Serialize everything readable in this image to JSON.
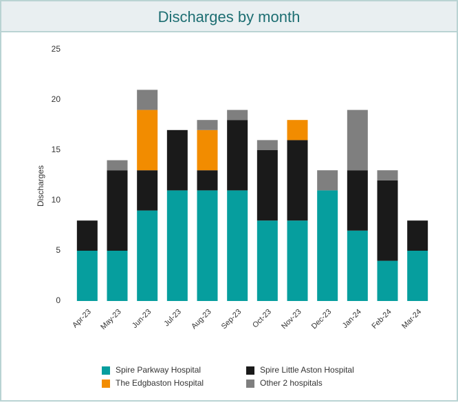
{
  "chart_data": {
    "type": "stacked_bar",
    "title": "Discharges by month",
    "y_label": "Discharges",
    "categories": [
      "Apr-23",
      "May-23",
      "Jun-23",
      "Jul-23",
      "Aug-23",
      "Sep-23",
      "Oct-23",
      "Nov-23",
      "Dec-23",
      "Jan-24",
      "Feb-24",
      "Mar-24"
    ],
    "series": [
      {
        "name": "Spire Parkway Hospital",
        "color": "#069e9e",
        "values": [
          5,
          5,
          9,
          11,
          11,
          11,
          8,
          8,
          11,
          7,
          4,
          5
        ]
      },
      {
        "name": "Spire Little Aston Hospital",
        "color": "#1a1a1a",
        "values": [
          3,
          8,
          4,
          6,
          2,
          7,
          7,
          8,
          0,
          6,
          8,
          3
        ]
      },
      {
        "name": "The Edgbaston Hospital",
        "color": "#f28c00",
        "values": [
          0,
          0,
          6,
          0,
          4,
          0,
          0,
          2,
          0,
          0,
          0,
          0
        ]
      },
      {
        "name": "Other 2 hospitals",
        "color": "#7f7f7f",
        "values": [
          0,
          1,
          2,
          0,
          1,
          1,
          1,
          0,
          2,
          6,
          1,
          0
        ]
      }
    ],
    "ylim": [
      0,
      25
    ],
    "yticks": [
      0,
      5,
      10,
      15,
      20,
      25
    ],
    "grid": false
  }
}
